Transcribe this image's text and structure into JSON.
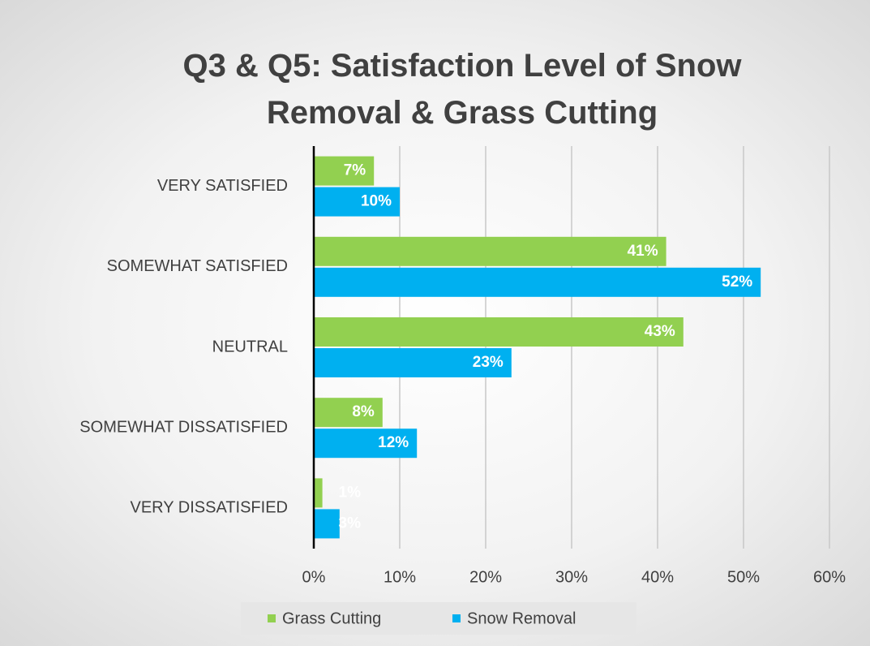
{
  "chart_data": {
    "type": "hbar",
    "title": "Q3 & Q5: Satisfaction Level of Snow Removal & Grass Cutting",
    "categories": [
      "VERY SATISFIED",
      "SOMEWHAT SATISFIED",
      "NEUTRAL",
      "SOMEWHAT DISSATISFIED",
      "VERY DISSATISFIED"
    ],
    "series": [
      {
        "name": "Grass Cutting",
        "color": "#92d050",
        "values": [
          7,
          41,
          43,
          8,
          1
        ],
        "value_labels": [
          "7%",
          "41%",
          "43%",
          "8%",
          "1%"
        ]
      },
      {
        "name": "Snow Removal",
        "color": "#00b0f0",
        "values": [
          10,
          52,
          23,
          12,
          3
        ],
        "value_labels": [
          "10%",
          "52%",
          "23%",
          "12%",
          "3%"
        ]
      }
    ],
    "xlim": [
      0,
      60
    ],
    "xticks": [
      {
        "value": 0,
        "label": "0%"
      },
      {
        "value": 10,
        "label": "10%"
      },
      {
        "value": 20,
        "label": "20%"
      },
      {
        "value": 30,
        "label": "30%"
      },
      {
        "value": 40,
        "label": "40%"
      },
      {
        "value": 50,
        "label": "50%"
      },
      {
        "value": 60,
        "label": "60%"
      }
    ],
    "grid": true,
    "legend": "bottom"
  }
}
